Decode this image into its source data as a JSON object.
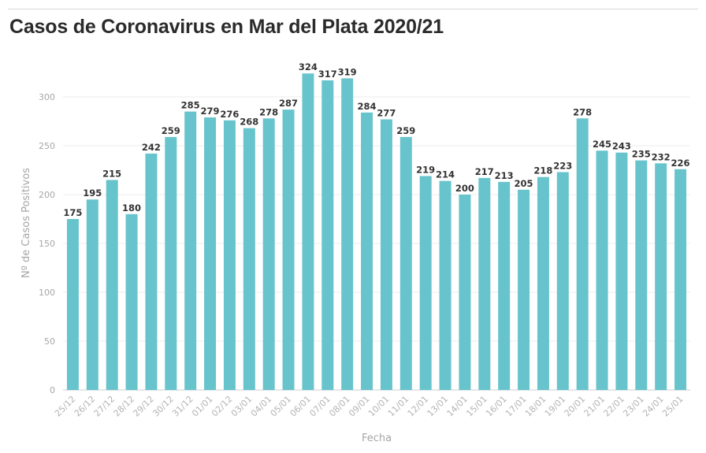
{
  "chart_data": {
    "type": "bar",
    "title": "Casos de Coronavirus en Mar del Plata 2020/21",
    "xlabel": "Fecha",
    "ylabel": "Nº de Casos Positivos",
    "ylim": [
      0,
      340
    ],
    "yticks": [
      0,
      50,
      100,
      150,
      200,
      250,
      300
    ],
    "grid": true,
    "bar_color": "#68c4cc",
    "categories": [
      "25/12",
      "26/12",
      "27/12",
      "28/12",
      "29/12",
      "30/12",
      "31/12",
      "01/01",
      "02/12",
      "03/01",
      "04/01",
      "05/01",
      "06/01",
      "07/01",
      "08/01",
      "09/01",
      "10/01",
      "11/01",
      "12/01",
      "13/01",
      "14/01",
      "15/01",
      "16/01",
      "17/01",
      "18/01",
      "19/01",
      "20/01",
      "21/01",
      "22/01",
      "23/01",
      "24/01",
      "25/01"
    ],
    "values": [
      175,
      195,
      215,
      180,
      242,
      259,
      285,
      279,
      276,
      268,
      278,
      287,
      324,
      317,
      319,
      284,
      277,
      259,
      219,
      214,
      200,
      217,
      213,
      205,
      218,
      223,
      278,
      245,
      243,
      235,
      232,
      226
    ]
  }
}
